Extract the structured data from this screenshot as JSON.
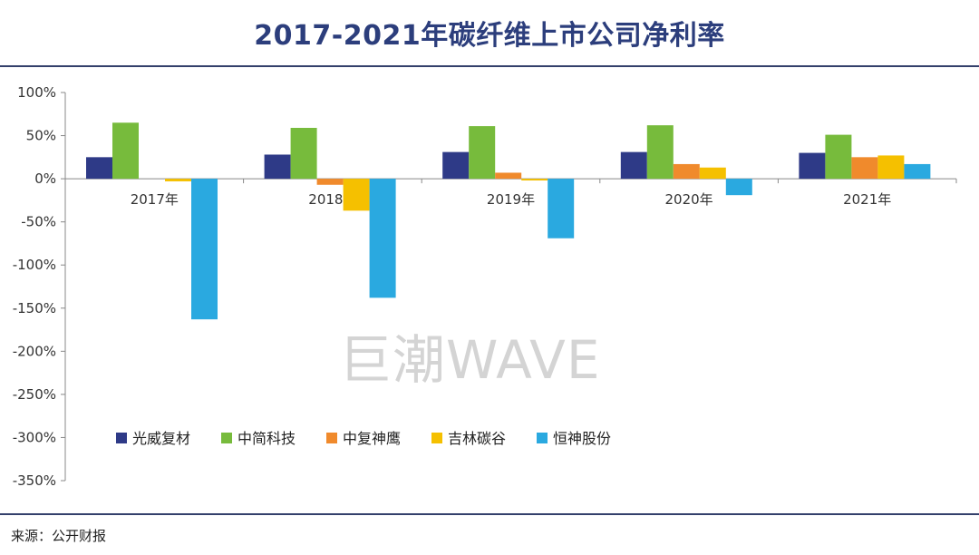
{
  "chart_data": {
    "type": "bar",
    "title": "2017-2021年碳纤维上市公司净利率",
    "xlabel": "",
    "ylabel": "",
    "categories": [
      "2017年",
      "2018年",
      "2019年",
      "2020年",
      "2021年"
    ],
    "ylim": [
      -350,
      100
    ],
    "yticks": [
      100,
      50,
      0,
      -50,
      -100,
      -150,
      -200,
      -250,
      -300,
      -350
    ],
    "ytick_labels": [
      "100%",
      "50%",
      "0%",
      "-50%",
      "-100%",
      "-150%",
      "-200%",
      "-250%",
      "-300%",
      "-350%"
    ],
    "grid": false,
    "legend_position": "lower-left inside plot",
    "series": [
      {
        "name": "光威复材",
        "color": "#2e3a87",
        "values": [
          25,
          28,
          31,
          31,
          30
        ]
      },
      {
        "name": "中简科技",
        "color": "#77bb3c",
        "values": [
          65,
          59,
          61,
          62,
          51
        ]
      },
      {
        "name": "中复神鹰",
        "color": "#f08a2c",
        "values": [
          null,
          -7,
          7,
          17,
          25
        ]
      },
      {
        "name": "吉林碳谷",
        "color": "#f5c000",
        "values": [
          -3,
          -37,
          -2,
          13,
          27
        ]
      },
      {
        "name": "恒神股份",
        "color": "#2aa9e0",
        "values": [
          -163,
          -138,
          -69,
          -19,
          17
        ]
      }
    ]
  },
  "watermark": "巨潮WAVE",
  "source": "来源：公开财报"
}
